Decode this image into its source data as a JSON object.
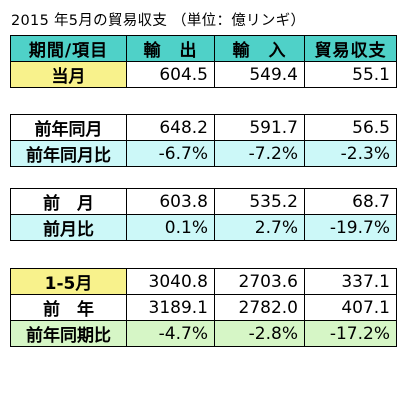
{
  "title": "2015 年5月の貿易収支 （単位：億リンギ）",
  "colors": {
    "header": "#4fd1c8",
    "yellow": "#f8f28c",
    "cyan": "#ccf8f8",
    "green": "#d6f6c6"
  },
  "header": {
    "item": "期間/項目",
    "export": "輸　出",
    "import": "輸　入",
    "balance": "貿易収支"
  },
  "current": {
    "label": "当月",
    "export": "604.5",
    "import": "549.4",
    "balance": "55.1"
  },
  "prev_year_month": {
    "label": "前年同月",
    "export": "648.2",
    "import": "591.7",
    "balance": "56.5"
  },
  "prev_year_month_ratio": {
    "label": "前年同月比",
    "export": "-6.7%",
    "import": "-7.2%",
    "balance": "-2.3%"
  },
  "prev_month": {
    "label": "前　月",
    "export": "603.8",
    "import": "535.2",
    "balance": "68.7"
  },
  "prev_month_ratio": {
    "label": "前月比",
    "export": "0.1%",
    "import": "2.7%",
    "balance": "-19.7%"
  },
  "ytd": {
    "label": "1-5月",
    "export": "3040.8",
    "import": "2703.6",
    "balance": "337.1"
  },
  "prev_year": {
    "label": "前　年",
    "export": "3189.1",
    "import": "2782.0",
    "balance": "407.1"
  },
  "prev_year_period_ratio": {
    "label": "前年同期比",
    "export": "-4.7%",
    "import": "-2.8%",
    "balance": "-17.2%"
  }
}
